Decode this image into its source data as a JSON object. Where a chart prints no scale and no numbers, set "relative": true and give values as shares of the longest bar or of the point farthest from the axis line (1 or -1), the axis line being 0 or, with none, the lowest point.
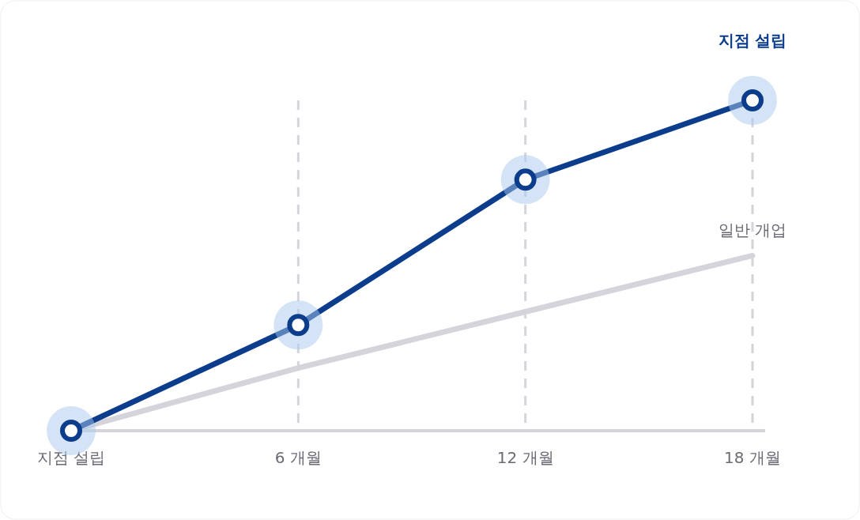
{
  "chart_data": {
    "type": "line",
    "relative": true,
    "categories": [
      "지점 설립",
      "6 개월",
      "12 개월",
      "18 개월"
    ],
    "grid": "x",
    "line_style": "solid",
    "series": [
      {
        "name": "일반 개업",
        "color": "#d4d4da",
        "values": [
          0,
          0.19,
          0.36,
          0.53
        ],
        "marker": "none"
      },
      {
        "name": "지점 설립",
        "color": "#0b3d8c",
        "values": [
          0,
          0.32,
          0.76,
          1
        ],
        "marker": "circle"
      }
    ]
  }
}
